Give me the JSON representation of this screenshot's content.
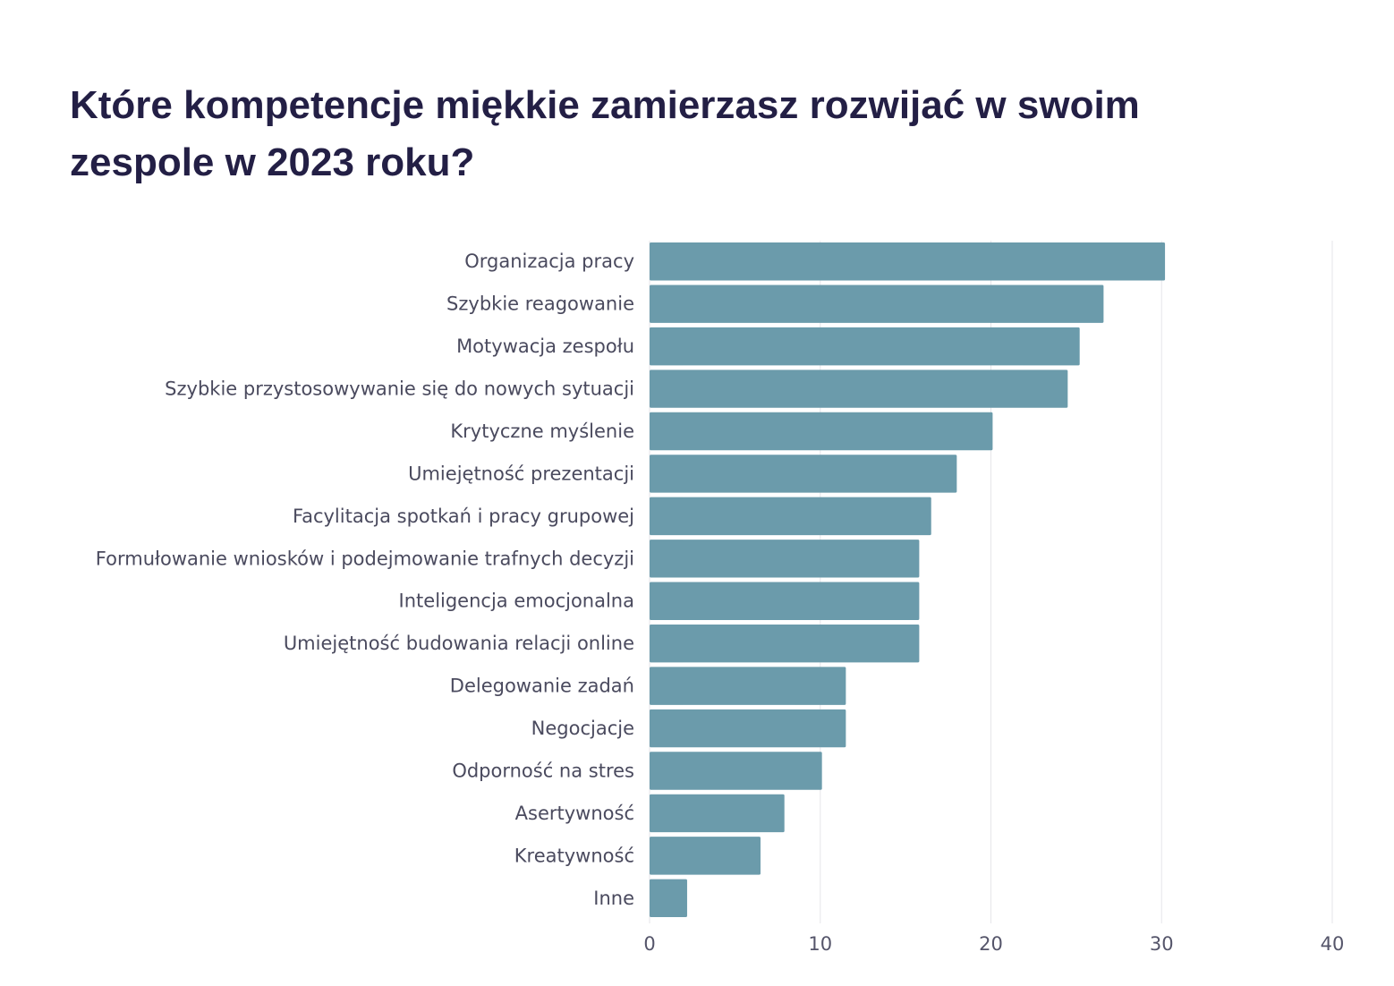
{
  "chart_data": {
    "type": "bar",
    "orientation": "horizontal",
    "title": "Które kompetencje miękkie zamierzasz rozwijać w swoim zespole w 2023 roku?",
    "categories": [
      "Organizacja pracy",
      "Szybkie reagowanie",
      "Motywacja zespołu",
      "Szybkie przystosowywanie się do nowych sytuacji",
      "Krytyczne myślenie",
      "Umiejętność prezentacji",
      "Facylitacja spotkań i pracy grupowej",
      "Formułowanie wniosków i podejmowanie trafnych decyzji",
      "Inteligencja emocjonalna",
      "Umiejętność budowania relacji online",
      "Delegowanie zadań",
      "Negocjacje",
      "Odporność na stres",
      "Asertywność",
      "Kreatywność",
      "Inne"
    ],
    "values": [
      30.2,
      26.6,
      25.2,
      24.5,
      20.1,
      18.0,
      16.5,
      15.8,
      15.8,
      15.8,
      11.5,
      11.5,
      10.1,
      7.9,
      6.5,
      2.2
    ],
    "xlim": [
      0,
      40
    ],
    "xticks": [
      "0",
      "10",
      "20",
      "30",
      "40"
    ],
    "xlabel": "",
    "ylabel": "",
    "grid": "vertical",
    "bar_color": "#6b9bab",
    "title_color": "#231f45"
  }
}
